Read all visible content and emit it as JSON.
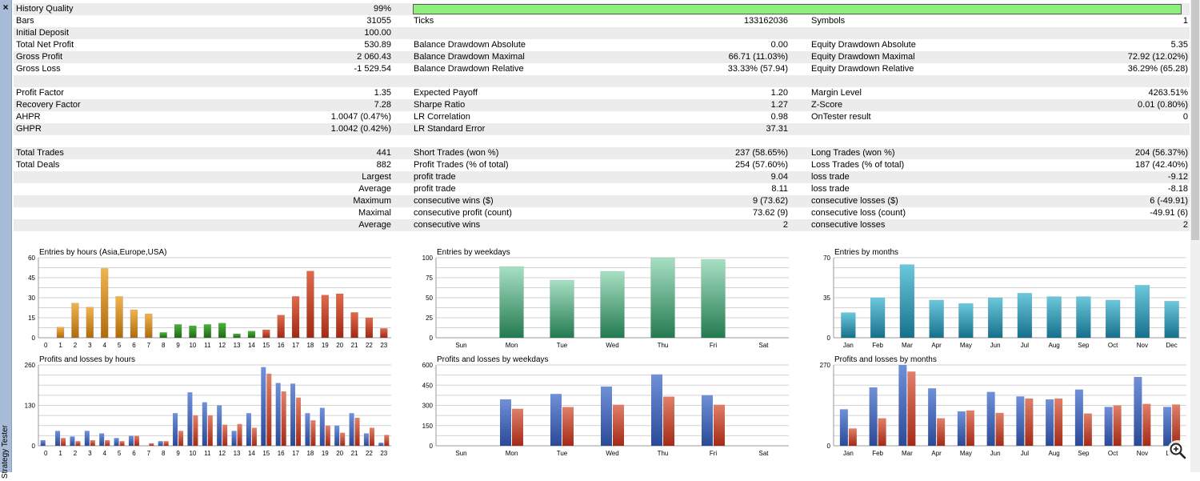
{
  "window": {
    "side_title": "Strategy Tester"
  },
  "history_quality": {
    "label": "History Quality",
    "value": "99%",
    "fraction": 0.99
  },
  "rows": [
    {
      "l1": "Bars",
      "v1": "31055",
      "l2": "Ticks",
      "v2": "133162036",
      "l3": "Symbols",
      "v3": "1"
    },
    {
      "l1": "Initial Deposit",
      "v1": "100.00",
      "l2": "",
      "v2": "",
      "l3": "",
      "v3": ""
    },
    {
      "l1": "Total Net Profit",
      "v1": "530.89",
      "l2": "Balance Drawdown Absolute",
      "v2": "0.00",
      "l3": "Equity Drawdown Absolute",
      "v3": "5.35"
    },
    {
      "l1": "Gross Profit",
      "v1": "2 060.43",
      "l2": "Balance Drawdown Maximal",
      "v2": "66.71 (11.03%)",
      "l3": "Equity Drawdown Maximal",
      "v3": "72.92 (12.02%)"
    },
    {
      "l1": "Gross Loss",
      "v1": "-1 529.54",
      "l2": "Balance Drawdown Relative",
      "v2": "33.33% (57.94)",
      "l3": "Equity Drawdown Relative",
      "v3": "36.29% (65.28)"
    },
    {
      "l1": "",
      "v1": "",
      "l2": "",
      "v2": "",
      "l3": "",
      "v3": ""
    },
    {
      "l1": "Profit Factor",
      "v1": "1.35",
      "l2": "Expected Payoff",
      "v2": "1.20",
      "l3": "Margin Level",
      "v3": "4263.51%"
    },
    {
      "l1": "Recovery Factor",
      "v1": "7.28",
      "l2": "Sharpe Ratio",
      "v2": "1.27",
      "l3": "Z-Score",
      "v3": "0.01 (0.80%)"
    },
    {
      "l1": "AHPR",
      "v1": "1.0047 (0.47%)",
      "l2": "LR Correlation",
      "v2": "0.98",
      "l3": "OnTester result",
      "v3": "0"
    },
    {
      "l1": "GHPR",
      "v1": "1.0042 (0.42%)",
      "l2": "LR Standard Error",
      "v2": "37.31",
      "l3": "",
      "v3": ""
    },
    {
      "l1": "",
      "v1": "",
      "l2": "",
      "v2": "",
      "l3": "",
      "v3": ""
    },
    {
      "l1": "Total Trades",
      "v1": "441",
      "l2": "Short Trades (won %)",
      "v2": "237 (58.65%)",
      "l3": "Long Trades (won %)",
      "v3": "204 (56.37%)"
    },
    {
      "l1": "Total Deals",
      "v1": "882",
      "l2": "Profit Trades (% of total)",
      "v2": "254 (57.60%)",
      "l3": "Loss Trades (% of total)",
      "v3": "187 (42.40%)"
    },
    {
      "r1": "Largest",
      "l2": "profit trade",
      "v2": "9.04",
      "l3": "loss trade",
      "v3": "-9.12"
    },
    {
      "r1": "Average",
      "l2": "profit trade",
      "v2": "8.11",
      "l3": "loss trade",
      "v3": "-8.18"
    },
    {
      "r1": "Maximum",
      "l2": "consecutive wins ($)",
      "v2": "9 (73.62)",
      "l3": "consecutive losses ($)",
      "v3": "6 (-49.91)"
    },
    {
      "r1": "Maximal",
      "l2": "consecutive profit (count)",
      "v2": "73.62 (9)",
      "l3": "consecutive loss (count)",
      "v3": "-49.91 (6)"
    },
    {
      "r1": "Average",
      "l2": "consecutive wins",
      "v2": "2",
      "l3": "consecutive losses",
      "v3": "2"
    },
    {
      "l1": "",
      "v1": "",
      "l2": "",
      "v2": "",
      "l3": "",
      "v3": ""
    }
  ],
  "chart_data": [
    {
      "type": "bar",
      "title": "Entries by hours (Asia,Europe,USA)",
      "ylim": [
        0,
        60
      ],
      "yticks": [
        0,
        15,
        30,
        45,
        60
      ],
      "categories": [
        "0",
        "1",
        "2",
        "3",
        "4",
        "5",
        "6",
        "7",
        "8",
        "9",
        "10",
        "11",
        "12",
        "13",
        "14",
        "15",
        "16",
        "17",
        "18",
        "19",
        "20",
        "21",
        "22",
        "23"
      ],
      "values": [
        0,
        8,
        26,
        23,
        52,
        31,
        21,
        18,
        4,
        10,
        9,
        10,
        11,
        3,
        5,
        6,
        17,
        31,
        50,
        32,
        33,
        19,
        15,
        7
      ]
    },
    {
      "type": "bar",
      "title": "Entries by weekdays",
      "ylim": [
        0,
        100
      ],
      "yticks": [
        0,
        25,
        50,
        75,
        100
      ],
      "categories": [
        "Sun",
        "Mon",
        "Tue",
        "Wed",
        "Thu",
        "Fri",
        "Sat"
      ],
      "values": [
        0,
        89,
        72,
        83,
        100,
        98,
        0
      ]
    },
    {
      "type": "bar",
      "title": "Entries by months",
      "ylim": [
        0,
        70
      ],
      "yticks": [
        0,
        35,
        70
      ],
      "categories": [
        "Jan",
        "Feb",
        "Mar",
        "Apr",
        "May",
        "Jun",
        "Jul",
        "Aug",
        "Sep",
        "Oct",
        "Nov",
        "Dec"
      ],
      "values": [
        22,
        35,
        64,
        33,
        30,
        35,
        39,
        36,
        36,
        33,
        46,
        32
      ]
    },
    {
      "type": "bar",
      "title": "Profits and losses by hours",
      "ylim": [
        0,
        260
      ],
      "yticks": [
        0,
        130,
        260
      ],
      "categories": [
        "0",
        "1",
        "2",
        "3",
        "4",
        "5",
        "6",
        "7",
        "8",
        "9",
        "10",
        "11",
        "12",
        "13",
        "14",
        "15",
        "16",
        "17",
        "18",
        "19",
        "20",
        "21",
        "22",
        "23"
      ],
      "series": [
        {
          "values": [
            18,
            48,
            30,
            48,
            40,
            25,
            32,
            0,
            15,
            105,
            172,
            140,
            130,
            48,
            105,
            253,
            202,
            200,
            105,
            122,
            65,
            105,
            40,
            10
          ]
        },
        {
          "values": [
            0,
            25,
            15,
            18,
            18,
            15,
            32,
            8,
            15,
            48,
            98,
            98,
            68,
            70,
            58,
            232,
            175,
            155,
            82,
            65,
            42,
            90,
            58,
            35
          ]
        }
      ]
    },
    {
      "type": "bar",
      "title": "Profits and losses by weekdays",
      "ylim": [
        0,
        600
      ],
      "yticks": [
        0,
        150,
        300,
        450,
        600
      ],
      "categories": [
        "Sun",
        "Mon",
        "Tue",
        "Wed",
        "Thu",
        "Fri",
        "Sat"
      ],
      "series": [
        {
          "values": [
            0,
            345,
            385,
            440,
            530,
            375,
            0
          ]
        },
        {
          "values": [
            0,
            275,
            288,
            305,
            365,
            305,
            0
          ]
        }
      ]
    },
    {
      "type": "bar",
      "title": "Profits and losses by months",
      "ylim": [
        0,
        270
      ],
      "yticks": [
        0,
        270
      ],
      "categories": [
        "Jan",
        "Feb",
        "Mar",
        "Apr",
        "May",
        "Jun",
        "Jul",
        "Aug",
        "Sep",
        "Oct",
        "Nov",
        "Dec"
      ],
      "series": [
        {
          "values": [
            122,
            195,
            270,
            192,
            115,
            180,
            165,
            155,
            188,
            130,
            230,
            130
          ]
        },
        {
          "values": [
            58,
            92,
            248,
            92,
            118,
            110,
            158,
            158,
            108,
            135,
            140,
            138
          ]
        }
      ]
    }
  ],
  "colors": {
    "hours_asia": "#c07a14",
    "hours_europe": "#2f7f1e",
    "hours_usa": "#b3381e",
    "weekdays": "#2e8f62",
    "months": "#1e8fa8",
    "profit": "#3858a8",
    "loss": "#b83a22",
    "history_bar": "#8df07a"
  }
}
